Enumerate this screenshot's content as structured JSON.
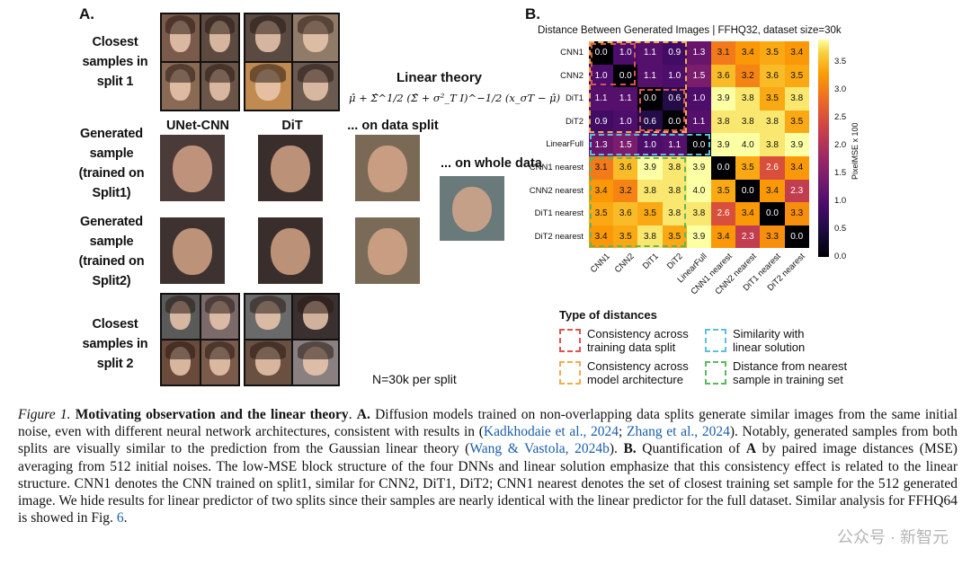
{
  "panelA": {
    "letter": "A.",
    "rows": {
      "closest1": [
        "Closest",
        "samples in",
        "split 1"
      ],
      "gen1": [
        "Generated",
        "sample",
        "(trained on",
        "Split1)"
      ],
      "gen2": [
        "Generated",
        "sample",
        "(trained on",
        "Split2)"
      ],
      "closest2": [
        "Closest",
        "samples in",
        "split 2"
      ]
    },
    "columns": {
      "unet": "UNet-CNN",
      "dit": "DiT",
      "data_split": "... on data split",
      "whole_data": "... on whole data"
    },
    "linear_theory_title": "Linear theory",
    "formula": "μ̂ + Σ̂^1/2 (Σ̂ + σ²_T I)^−1/2 (x_σT − μ̂)",
    "n_note": "N=30k per split"
  },
  "panelB": {
    "letter": "B.",
    "title": "Distance Between Generated Images | FFHQ32, dataset size=30k",
    "colorbar_label": "PixelMSE x 100",
    "colorbar_ticks": [
      "0.0",
      "0.5",
      "1.0",
      "1.5",
      "2.0",
      "2.5",
      "3.0",
      "3.5"
    ],
    "legend_title": "Type of distances",
    "legend": [
      {
        "color": "#d9534f",
        "text": [
          "Consistency across",
          "training data split"
        ]
      },
      {
        "color": "#f0ad4e",
        "text": [
          "Consistency across",
          "model architecture"
        ]
      },
      {
        "color": "#5bc0de",
        "text": [
          "Similarity with",
          "linear solution"
        ]
      },
      {
        "color": "#5cb85c",
        "text": [
          "Distance from nearest",
          "sample in training set"
        ]
      }
    ]
  },
  "chart_data": {
    "type": "heatmap",
    "title": "Distance Between Generated Images | FFHQ32, dataset size=30k",
    "rows": [
      "CNN1",
      "CNN2",
      "DiT1",
      "DiT2",
      "LinearFull",
      "CNN1 nearest",
      "CNN2 nearest",
      "DiT1 nearest",
      "DiT2 nearest"
    ],
    "columns": [
      "CNN1",
      "CNN2",
      "DiT1",
      "DiT2",
      "LinearFull",
      "CNN1 nearest",
      "CNN2 nearest",
      "DiT1 nearest",
      "DiT2 nearest"
    ],
    "values": [
      [
        0.0,
        1.0,
        1.1,
        0.9,
        1.3,
        3.1,
        3.4,
        3.5,
        3.4
      ],
      [
        1.0,
        0.0,
        1.1,
        1.0,
        1.5,
        3.6,
        3.2,
        3.6,
        3.5
      ],
      [
        1.1,
        1.1,
        0.0,
        0.6,
        1.0,
        3.9,
        3.8,
        3.5,
        3.8
      ],
      [
        0.9,
        1.0,
        0.6,
        0.0,
        1.1,
        3.8,
        3.8,
        3.8,
        3.5
      ],
      [
        1.3,
        1.5,
        1.0,
        1.1,
        0.0,
        3.9,
        4.0,
        3.8,
        3.9
      ],
      [
        3.1,
        3.6,
        3.9,
        3.8,
        3.9,
        0.0,
        3.5,
        2.6,
        3.4
      ],
      [
        3.4,
        3.2,
        3.8,
        3.8,
        4.0,
        3.5,
        0.0,
        3.4,
        2.3
      ],
      [
        3.5,
        3.6,
        3.5,
        3.8,
        3.8,
        2.6,
        3.4,
        0.0,
        3.3
      ],
      [
        3.4,
        3.5,
        3.8,
        3.5,
        3.9,
        3.4,
        2.3,
        3.3,
        0.0
      ]
    ],
    "colorbar_range": [
      0,
      3.9
    ],
    "colormap": "inferno",
    "legend_placement": "bottom"
  },
  "caption": {
    "figure_label": "Figure 1.",
    "bold_title": "Motivating observation and the linear theory",
    "t1": ". ",
    "a_bold": "A.",
    "t2": " Diffusion models trained on non-overlapping data splits generate similar images from the same initial noise, even with different neural network architectures, consistent with results in (",
    "link1": "Kadkhodaie et al., 2024",
    "t3": "; ",
    "link2": "Zhang et al., 2024",
    "t4": "). Notably, generated samples from both splits are visually similar to the prediction from the Gaussian linear theory (",
    "link3": "Wang & Vastola, 2024b",
    "t5": "). ",
    "b_bold": "B.",
    "t6": " Quantification of ",
    "a_bold2": "A",
    "t7": " by paired image distances (MSE) averaging from 512 initial noises. The low-MSE block structure of the four DNNs and linear solution emphasize that this consistency effect is related to the linear structure. CNN1 denotes the CNN trained on split1, similar for CNN2, DiT1, DiT2; CNN1 nearest denotes the set of closest training set sample for the 512 generated image. We hide results for linear predictor of two splits since their samples are nearly identical with the linear predictor for the full dataset. Similar analysis for FFHQ64 is showed in Fig. ",
    "link4": "6",
    "t8": "."
  },
  "watermark": "公众号 · 新智元",
  "colors": {
    "link": "#1a5fa8",
    "border": "#111111"
  }
}
